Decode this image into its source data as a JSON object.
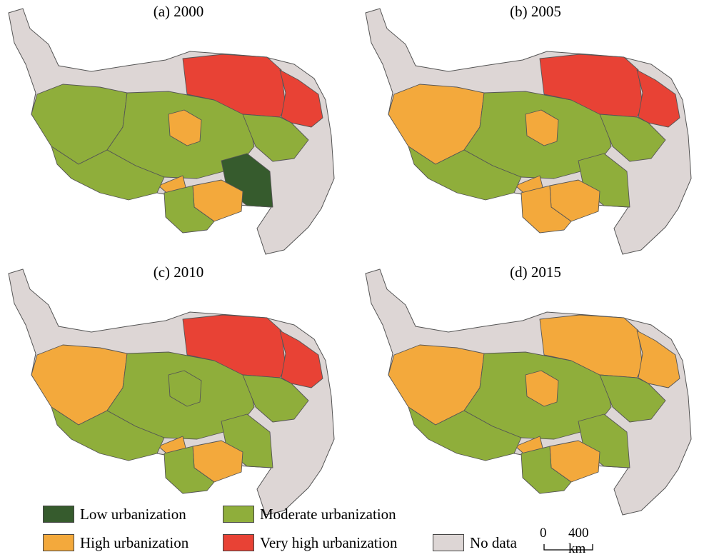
{
  "colors": {
    "low": "#365b2d",
    "moderate": "#8fae3b",
    "high": "#f3a93c",
    "very_high": "#e84235",
    "no_data": "#ddd6d5",
    "border": "#555555"
  },
  "panels": [
    {
      "title": "(a) 2000",
      "levels": [
        "moderate",
        "moderate",
        "very_high",
        "high",
        "very_high",
        "moderate",
        "low",
        "high",
        "high",
        "moderate",
        "moderate"
      ]
    },
    {
      "title": "(b) 2005",
      "levels": [
        "high",
        "moderate",
        "very_high",
        "high",
        "very_high",
        "moderate",
        "moderate",
        "high",
        "high",
        "moderate",
        "high"
      ]
    },
    {
      "title": "(c) 2010",
      "levels": [
        "high",
        "moderate",
        "very_high",
        "moderate",
        "very_high",
        "moderate",
        "moderate",
        "high",
        "high",
        "moderate",
        "moderate"
      ]
    },
    {
      "title": "(d) 2015",
      "levels": [
        "high",
        "moderate",
        "high",
        "high",
        "high",
        "moderate",
        "moderate",
        "high",
        "high",
        "moderate",
        "moderate"
      ]
    }
  ],
  "legend": {
    "low": "Low urbanization",
    "moderate": "Moderate urbanization",
    "high": "High urbanization",
    "very_high": "Very high urbanization",
    "no_data": "No data"
  },
  "scale": {
    "zero": "0",
    "distance": "400 km"
  }
}
